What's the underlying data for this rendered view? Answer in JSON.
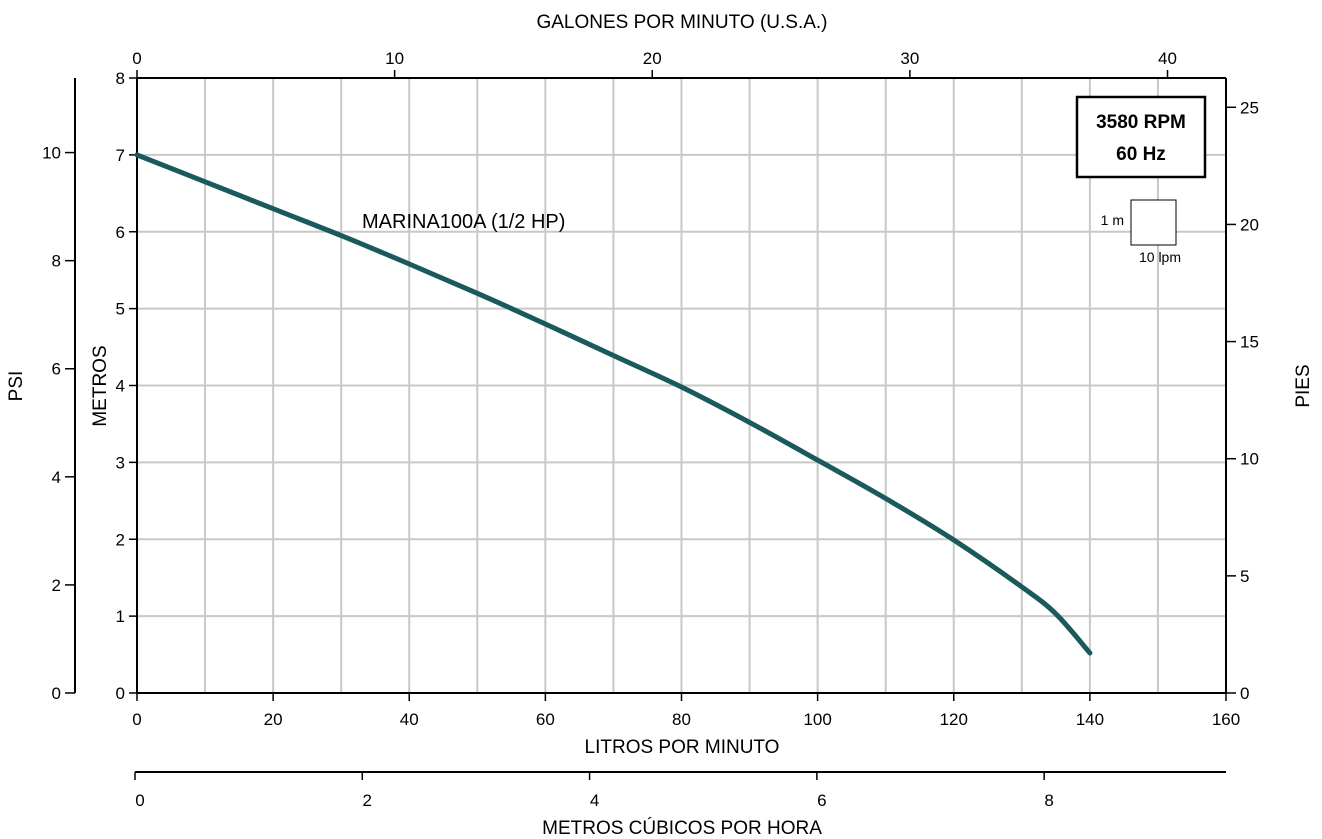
{
  "chart_data": {
    "type": "line",
    "series": [
      {
        "name": "MARINA100A (1/2 HP)",
        "color": "#1a5a5c",
        "x": [
          0,
          10,
          20,
          30,
          40,
          50,
          60,
          70,
          80,
          90,
          100,
          110,
          120,
          130,
          135,
          140
        ],
        "y": [
          7.0,
          6.65,
          6.3,
          5.95,
          5.58,
          5.2,
          4.8,
          4.39,
          3.98,
          3.52,
          3.03,
          2.53,
          1.99,
          1.38,
          1.03,
          0.52
        ]
      }
    ],
    "axes": {
      "bottom": {
        "label": "LITROS POR MINUTO",
        "range": [
          0,
          160
        ],
        "ticks": [
          0,
          20,
          40,
          60,
          80,
          100,
          120,
          140,
          160
        ]
      },
      "top": {
        "label": "GALONES POR MINUTO (U.S.A.)",
        "range": [
          0,
          42.27
        ],
        "ticks": [
          0,
          10,
          20,
          30,
          40
        ]
      },
      "m3h": {
        "label": "METROS CÚBICOS POR HORA",
        "range": [
          0,
          9.6
        ],
        "ticks": [
          0,
          2,
          4,
          6,
          8
        ]
      },
      "left_inner": {
        "label": "METROS",
        "range": [
          0,
          8
        ],
        "ticks": [
          0,
          1,
          2,
          3,
          4,
          5,
          6,
          7,
          8
        ]
      },
      "left_outer": {
        "label": "PSI",
        "range": [
          0,
          11.38
        ],
        "ticks": [
          0,
          2,
          4,
          6,
          8,
          10
        ]
      },
      "right": {
        "label": "PIES",
        "range": [
          0,
          26.25
        ],
        "ticks": [
          0,
          5,
          10,
          15,
          20,
          25
        ]
      }
    },
    "grid": true,
    "grid_minor_x_step_lpm": 10,
    "annotations": {
      "speed_box": {
        "line1": "3580 RPM",
        "line2": "60 Hz"
      },
      "scale_key": {
        "vertical": "1 m",
        "horizontal": "10 lpm"
      }
    }
  }
}
